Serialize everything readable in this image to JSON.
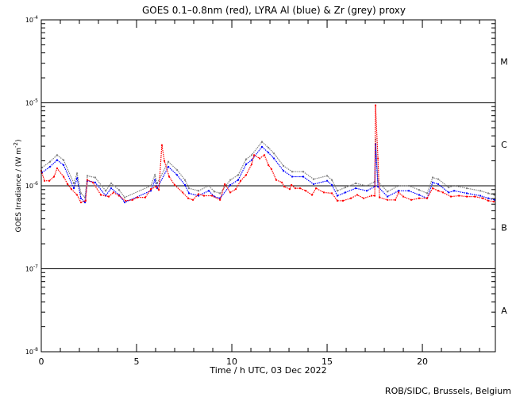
{
  "chart_data": {
    "type": "scatter",
    "title": "GOES 0.1–0.8nm (red), LYRA Al (blue) & Zr (grey) proxy",
    "xlabel": "Time / h UTC, 03 Dec 2022",
    "ylabel": "GOES Irradiance / (W m",
    "ylabel_sup": "-2",
    "ylabel_end": ")",
    "xlim": [
      0,
      23.83
    ],
    "ylim_log10": [
      -8,
      -4
    ],
    "y_scale": "log",
    "x_ticks": [
      0,
      5,
      10,
      15,
      20
    ],
    "x_tick_labels": [
      "0",
      "5",
      "10",
      "15",
      "20"
    ],
    "y_ticks_log10": [
      -8,
      -7,
      -6,
      -5,
      -4
    ],
    "y_tick_labels": [
      {
        "base": "10",
        "exp": "-8"
      },
      {
        "base": "10",
        "exp": "-7"
      },
      {
        "base": "10",
        "exp": "-6"
      },
      {
        "base": "10",
        "exp": "-5"
      },
      {
        "base": "10",
        "exp": "-4"
      }
    ],
    "reference_lines_log10": [
      -7,
      -6,
      -5
    ],
    "flare_classes": [
      {
        "label": "A",
        "log10_center": -7.5
      },
      {
        "label": "B",
        "log10_center": -6.5
      },
      {
        "label": "C",
        "log10_center": -5.5
      },
      {
        "label": "M",
        "log10_center": -4.5
      }
    ],
    "credit": "ROB/SIDC, Brussels, Belgium",
    "series": [
      {
        "name": "GOES 0.1-0.8nm",
        "color": "#ff0000",
        "points_hour_log10": [
          [
            0,
            -5.82
          ],
          [
            0.17,
            -5.94
          ],
          [
            0.42,
            -5.94
          ],
          [
            0.67,
            -5.89
          ],
          [
            0.83,
            -5.79
          ],
          [
            1.17,
            -5.89
          ],
          [
            1.38,
            -5.98
          ],
          [
            1.58,
            -6.04
          ],
          [
            1.88,
            -6.11
          ],
          [
            2.08,
            -6.2
          ],
          [
            2.33,
            -6.18
          ],
          [
            2.42,
            -5.93
          ],
          [
            2.71,
            -5.96
          ],
          [
            3.13,
            -6.11
          ],
          [
            3.54,
            -6.13
          ],
          [
            3.79,
            -6.08
          ],
          [
            4.08,
            -6.12
          ],
          [
            4.42,
            -6.18
          ],
          [
            4.79,
            -6.17
          ],
          [
            5.04,
            -6.14
          ],
          [
            5.46,
            -6.14
          ],
          [
            5.75,
            -6.04
          ],
          [
            6.04,
            -6.01
          ],
          [
            6.17,
            -6.05
          ],
          [
            6.33,
            -5.51
          ],
          [
            6.46,
            -5.7
          ],
          [
            6.71,
            -5.89
          ],
          [
            7.0,
            -5.99
          ],
          [
            7.42,
            -6.08
          ],
          [
            7.71,
            -6.15
          ],
          [
            7.96,
            -6.17
          ],
          [
            8.25,
            -6.1
          ],
          [
            8.54,
            -6.12
          ],
          [
            8.96,
            -6.12
          ],
          [
            9.38,
            -6.17
          ],
          [
            9.63,
            -5.98
          ],
          [
            9.92,
            -6.08
          ],
          [
            10.21,
            -6.04
          ],
          [
            10.46,
            -5.94
          ],
          [
            10.75,
            -5.87
          ],
          [
            11.04,
            -5.74
          ],
          [
            11.17,
            -5.63
          ],
          [
            11.46,
            -5.67
          ],
          [
            11.71,
            -5.63
          ],
          [
            11.92,
            -5.75
          ],
          [
            12.08,
            -5.8
          ],
          [
            12.33,
            -5.93
          ],
          [
            12.63,
            -5.96
          ],
          [
            12.75,
            -6.01
          ],
          [
            13.04,
            -6.04
          ],
          [
            13.13,
            -5.99
          ],
          [
            13.33,
            -6.03
          ],
          [
            13.58,
            -6.03
          ],
          [
            13.88,
            -6.06
          ],
          [
            14.21,
            -6.11
          ],
          [
            14.42,
            -6.03
          ],
          [
            14.83,
            -6.08
          ],
          [
            15.25,
            -6.09
          ],
          [
            15.54,
            -6.18
          ],
          [
            15.83,
            -6.18
          ],
          [
            16.25,
            -6.15
          ],
          [
            16.58,
            -6.11
          ],
          [
            16.92,
            -6.15
          ],
          [
            17.33,
            -6.12
          ],
          [
            17.5,
            -6.12
          ],
          [
            17.54,
            -5.03
          ],
          [
            17.67,
            -5.67
          ],
          [
            17.75,
            -6.14
          ],
          [
            18.17,
            -6.17
          ],
          [
            18.58,
            -6.17
          ],
          [
            18.75,
            -6.08
          ],
          [
            19.0,
            -6.13
          ],
          [
            19.42,
            -6.17
          ],
          [
            19.83,
            -6.15
          ],
          [
            20.25,
            -6.15
          ],
          [
            20.54,
            -6.03
          ],
          [
            20.83,
            -6.06
          ],
          [
            21.08,
            -6.08
          ],
          [
            21.5,
            -6.13
          ],
          [
            21.92,
            -6.12
          ],
          [
            22.33,
            -6.13
          ],
          [
            22.75,
            -6.13
          ],
          [
            23.17,
            -6.15
          ],
          [
            23.46,
            -6.18
          ],
          [
            23.75,
            -6.19
          ]
        ]
      },
      {
        "name": "LYRA Al proxy",
        "color": "#0000ff",
        "points_hour_log10": [
          [
            0.04,
            -5.84
          ],
          [
            0.46,
            -5.77
          ],
          [
            0.83,
            -5.69
          ],
          [
            1.17,
            -5.75
          ],
          [
            1.71,
            -6.03
          ],
          [
            1.88,
            -5.91
          ],
          [
            2.08,
            -6.15
          ],
          [
            2.29,
            -6.2
          ],
          [
            2.42,
            -5.94
          ],
          [
            2.83,
            -5.96
          ],
          [
            3.38,
            -6.12
          ],
          [
            3.67,
            -6.03
          ],
          [
            4.08,
            -6.11
          ],
          [
            4.38,
            -6.2
          ],
          [
            5.75,
            -6.06
          ],
          [
            5.96,
            -5.93
          ],
          [
            6.08,
            -6.03
          ],
          [
            6.67,
            -5.77
          ],
          [
            7.13,
            -5.87
          ],
          [
            7.54,
            -5.99
          ],
          [
            7.75,
            -6.09
          ],
          [
            8.25,
            -6.12
          ],
          [
            8.79,
            -6.06
          ],
          [
            9.08,
            -6.13
          ],
          [
            9.38,
            -6.15
          ],
          [
            9.92,
            -5.99
          ],
          [
            10.33,
            -5.93
          ],
          [
            10.75,
            -5.74
          ],
          [
            11.04,
            -5.69
          ],
          [
            11.58,
            -5.53
          ],
          [
            11.92,
            -5.6
          ],
          [
            12.21,
            -5.67
          ],
          [
            12.71,
            -5.82
          ],
          [
            13.17,
            -5.89
          ],
          [
            13.75,
            -5.89
          ],
          [
            14.29,
            -5.98
          ],
          [
            15.0,
            -5.94
          ],
          [
            15.25,
            -5.99
          ],
          [
            15.54,
            -6.12
          ],
          [
            15.96,
            -6.08
          ],
          [
            16.5,
            -6.03
          ],
          [
            17.08,
            -6.06
          ],
          [
            17.5,
            -6.01
          ],
          [
            17.54,
            -5.5
          ],
          [
            17.67,
            -6.01
          ],
          [
            18.17,
            -6.13
          ],
          [
            18.75,
            -6.06
          ],
          [
            19.29,
            -6.06
          ],
          [
            19.83,
            -6.11
          ],
          [
            20.25,
            -6.15
          ],
          [
            20.54,
            -5.96
          ],
          [
            20.83,
            -5.98
          ],
          [
            21.38,
            -6.08
          ],
          [
            21.67,
            -6.06
          ],
          [
            22.33,
            -6.09
          ],
          [
            23.04,
            -6.12
          ],
          [
            23.46,
            -6.15
          ],
          [
            23.79,
            -6.17
          ]
        ]
      },
      {
        "name": "LYRA Zr proxy",
        "color": "#808080",
        "points_hour_log10": [
          [
            0.04,
            -5.78
          ],
          [
            0.46,
            -5.71
          ],
          [
            0.83,
            -5.63
          ],
          [
            1.17,
            -5.69
          ],
          [
            1.71,
            -5.97
          ],
          [
            1.88,
            -5.85
          ],
          [
            2.08,
            -6.09
          ],
          [
            2.29,
            -6.14
          ],
          [
            2.42,
            -5.88
          ],
          [
            2.83,
            -5.9
          ],
          [
            3.38,
            -6.06
          ],
          [
            3.67,
            -5.97
          ],
          [
            4.08,
            -6.05
          ],
          [
            4.38,
            -6.14
          ],
          [
            5.75,
            -6.0
          ],
          [
            5.96,
            -5.87
          ],
          [
            6.08,
            -5.97
          ],
          [
            6.67,
            -5.71
          ],
          [
            7.13,
            -5.81
          ],
          [
            7.54,
            -5.93
          ],
          [
            7.75,
            -6.03
          ],
          [
            8.25,
            -6.06
          ],
          [
            8.79,
            -6.0
          ],
          [
            9.08,
            -6.07
          ],
          [
            9.38,
            -6.09
          ],
          [
            9.92,
            -5.93
          ],
          [
            10.33,
            -5.87
          ],
          [
            10.75,
            -5.68
          ],
          [
            11.04,
            -5.63
          ],
          [
            11.58,
            -5.47
          ],
          [
            11.92,
            -5.54
          ],
          [
            12.21,
            -5.61
          ],
          [
            12.71,
            -5.76
          ],
          [
            13.17,
            -5.83
          ],
          [
            13.75,
            -5.83
          ],
          [
            14.29,
            -5.92
          ],
          [
            15.0,
            -5.88
          ],
          [
            15.25,
            -5.93
          ],
          [
            15.54,
            -6.06
          ],
          [
            15.96,
            -6.02
          ],
          [
            16.5,
            -5.97
          ],
          [
            17.08,
            -6.0
          ],
          [
            17.5,
            -5.95
          ],
          [
            17.54,
            -5.44
          ],
          [
            17.67,
            -5.95
          ],
          [
            18.17,
            -6.07
          ],
          [
            18.75,
            -6.0
          ],
          [
            19.29,
            -6.0
          ],
          [
            19.83,
            -6.05
          ],
          [
            20.25,
            -6.09
          ],
          [
            20.54,
            -5.9
          ],
          [
            20.83,
            -5.92
          ],
          [
            21.38,
            -6.02
          ],
          [
            21.67,
            -6.0
          ],
          [
            22.33,
            -6.03
          ],
          [
            23.04,
            -6.06
          ],
          [
            23.46,
            -6.09
          ],
          [
            23.79,
            -6.11
          ]
        ]
      }
    ]
  }
}
